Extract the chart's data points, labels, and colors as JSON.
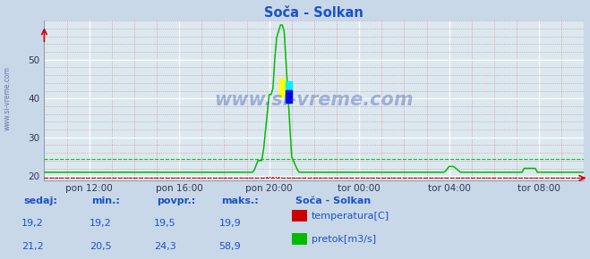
{
  "title": "Soča - Solkan",
  "title_color": "#1a52c9",
  "bg_color": "#c8d8e8",
  "plot_bg_color": "#dce8f0",
  "grid_major_color": "#ffffff",
  "grid_minor_color": "#d08080",
  "watermark": "www.si-vreme.com",
  "watermark_color": "#2244aa",
  "watermark_alpha": 0.35,
  "ylim": [
    19.0,
    60.0
  ],
  "yticks": [
    20,
    30,
    40,
    50
  ],
  "temp_color": "#cc0000",
  "flow_color": "#00bb00",
  "flow_avg": 24.3,
  "temp_avg": 19.5,
  "xtick_labels": [
    "pon 12:00",
    "pon 16:00",
    "pon 20:00",
    "tor 00:00",
    "tor 04:00",
    "tor 08:00"
  ],
  "legend_title": "Soča - Solkan",
  "legend_entries": [
    "temperatura[C]",
    "pretok[m3/s]"
  ],
  "legend_colors": [
    "#cc0000",
    "#00bb00"
  ],
  "stats_labels": [
    "sedaj:",
    "min.:",
    "povpr.:",
    "maks.:"
  ],
  "stats_temp": [
    "19,2",
    "19,2",
    "19,5",
    "19,9"
  ],
  "stats_flow": [
    "21,2",
    "20,5",
    "24,3",
    "58,9"
  ],
  "highlight_yellow": "#ffff00",
  "highlight_cyan": "#00eeff",
  "highlight_blue": "#0000ee",
  "arrow_color": "#cc0000",
  "spine_color": "#4444cc",
  "text_color": "#1a52c9"
}
